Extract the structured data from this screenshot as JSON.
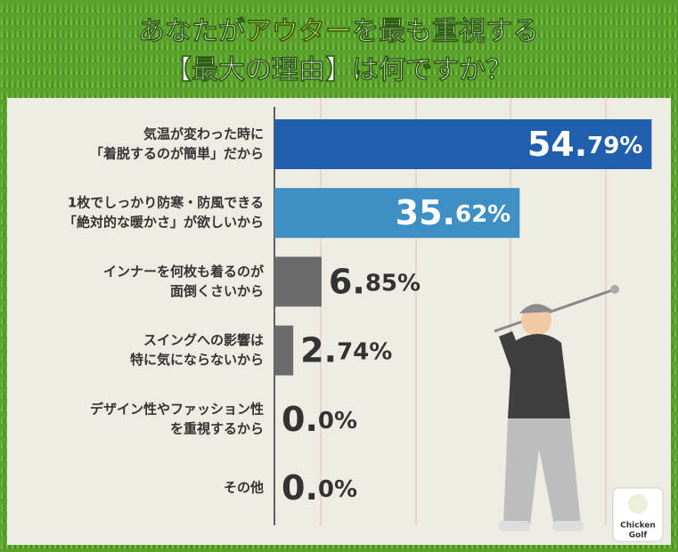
{
  "chart_data": {
    "type": "bar",
    "orientation": "horizontal",
    "title": {
      "line1": [
        "あなたが",
        "アウター",
        "を最も重視する"
      ],
      "line2": "【最大の理由】は何ですか？"
    },
    "title_highlight_color": "#f5e53a",
    "categories": [
      [
        "気温が変わった時に",
        "「着脱するのが簡単」だから"
      ],
      [
        "1枚でしっかり防寒・防風できる",
        "「絶対的な暖かさ」が欲しいから"
      ],
      [
        "インナーを何枚も着るのが",
        "面倒くさいから"
      ],
      [
        "スイングへの影響は",
        "特に気にならないから"
      ],
      [
        "デザイン性やファッション性",
        "を重視するから"
      ],
      [
        "その他"
      ]
    ],
    "values": [
      54.79,
      35.62,
      6.85,
      2.74,
      0.0,
      0.0
    ],
    "value_labels": [
      "54.79%",
      "35.62%",
      "6.85%",
      "2.74%",
      "0.0%",
      "0.0%"
    ],
    "colors": [
      "#1f5fae",
      "#3d8fc4",
      "#6b6b6b",
      "#6b6b6b",
      "#6b6b6b",
      "#6b6b6b"
    ],
    "xlim": [
      0,
      55
    ],
    "logo": [
      "Chicken",
      "Golf"
    ]
  }
}
